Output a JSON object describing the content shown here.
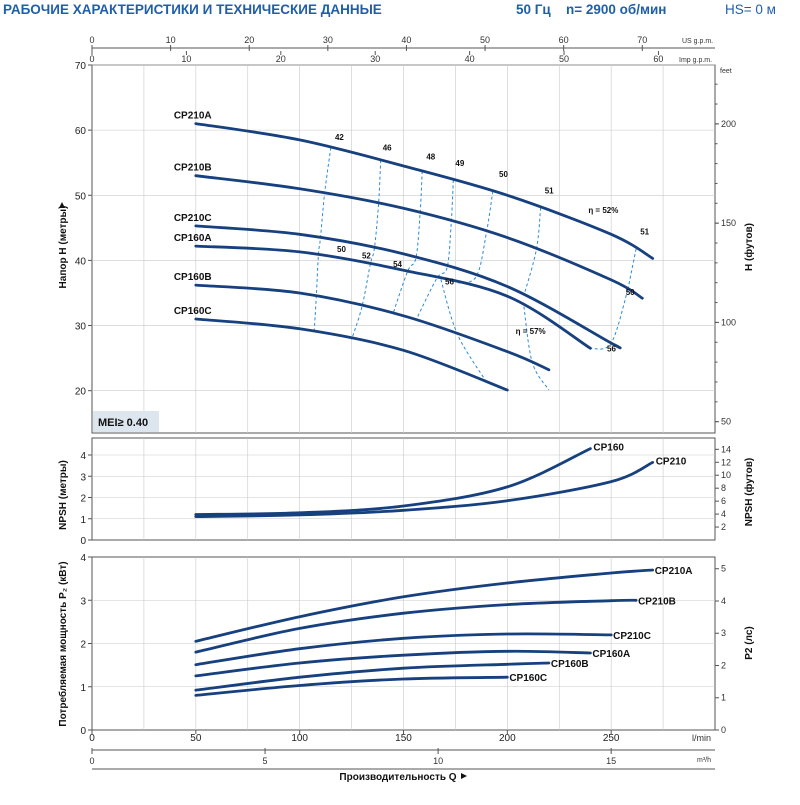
{
  "header": {
    "title": "РАБОЧИЕ ХАРАКТЕРИСТИКИ И ТЕХНИЧЕСКИЕ ДАННЫЕ",
    "frequency": "50 Гц",
    "speed": "n= 2900 об/мин",
    "hs": "HS= 0 м"
  },
  "colors": {
    "curve": "#17407f",
    "efficiency": "#2b8ad8",
    "title": "#1f5fa8",
    "badge": "#dde5ee"
  },
  "chart_data": [
    {
      "type": "line",
      "title": "Head vs flow",
      "ylabel": "Напор Н (метры)",
      "ylabel_right": "Н (футов)",
      "ylim": [
        13.5,
        70
      ],
      "yticks": [
        20,
        30,
        40,
        50,
        60,
        70
      ],
      "yticks_right": [
        50,
        100,
        150,
        200
      ],
      "yunit_right": "feet",
      "badge": "MEI≥ 0.40",
      "series": [
        {
          "name": "CP210A",
          "x": [
            50,
            100,
            150,
            200,
            250,
            270
          ],
          "values": [
            61,
            58.5,
            54.5,
            50,
            44,
            40.3
          ]
        },
        {
          "name": "CP210B",
          "x": [
            50,
            100,
            150,
            200,
            250,
            265
          ],
          "values": [
            53,
            51,
            48,
            43.5,
            37,
            34.2
          ]
        },
        {
          "name": "CP210C",
          "x": [
            50,
            100,
            150,
            200,
            250,
            252
          ],
          "values": [
            45.3,
            44,
            41,
            36,
            27.3,
            27
          ]
        },
        {
          "name": "CP160A",
          "x": [
            50,
            100,
            150,
            200,
            240
          ],
          "values": [
            42.2,
            41.3,
            38.5,
            34.5,
            26.5
          ]
        },
        {
          "name": "CP160B",
          "x": [
            50,
            100,
            150,
            200,
            220
          ],
          "values": [
            36.2,
            35,
            31.5,
            26,
            23.2
          ]
        },
        {
          "name": "CP160C",
          "x": [
            50,
            100,
            150,
            200
          ],
          "values": [
            31,
            29.5,
            26.2,
            20.1
          ]
        }
      ],
      "efficiency_labels": [
        {
          "text": "42",
          "x": 117,
          "y": 58.5
        },
        {
          "text": "46",
          "x": 140,
          "y": 56.9
        },
        {
          "text": "48",
          "x": 161,
          "y": 55.5
        },
        {
          "text": "49",
          "x": 175,
          "y": 54.5
        },
        {
          "text": "50",
          "x": 196,
          "y": 52.8
        },
        {
          "text": "51",
          "x": 218,
          "y": 50.3
        },
        {
          "text": "η = 52%",
          "x": 239,
          "y": 47.3
        },
        {
          "text": "51",
          "x": 264,
          "y": 44
        },
        {
          "text": "50",
          "x": 118,
          "y": 41.3
        },
        {
          "text": "52",
          "x": 130,
          "y": 40.3
        },
        {
          "text": "54",
          "x": 145,
          "y": 39
        },
        {
          "text": "56",
          "x": 170,
          "y": 36.3
        },
        {
          "text": "η = 57%",
          "x": 204,
          "y": 28.7
        },
        {
          "text": "56",
          "x": 248,
          "y": 26
        },
        {
          "text": "50",
          "x": 257,
          "y": 34.7
        }
      ]
    },
    {
      "type": "line",
      "title": "NPSH vs flow",
      "ylabel": "NPSH (метры)",
      "ylabel_right": "NPSH (футов)",
      "ylim": [
        0,
        4.8
      ],
      "yticks": [
        0,
        1,
        2,
        3,
        4
      ],
      "yticks_right": [
        2,
        4,
        6,
        8,
        10,
        12,
        14
      ],
      "series": [
        {
          "name": "CP160",
          "x": [
            50,
            100,
            150,
            200,
            240
          ],
          "values": [
            1.2,
            1.28,
            1.6,
            2.5,
            4.3
          ]
        },
        {
          "name": "CP210",
          "x": [
            50,
            100,
            150,
            200,
            250,
            270
          ],
          "values": [
            1.1,
            1.18,
            1.4,
            1.85,
            2.75,
            3.65
          ]
        }
      ]
    },
    {
      "type": "line",
      "title": "Power vs flow",
      "ylabel": "Потребляемая мощность P₂ (кВт)",
      "ylabel_right": "P2 (лс)",
      "ylim": [
        0,
        4
      ],
      "yticks": [
        0,
        1,
        2,
        3,
        4
      ],
      "yticks_right": [
        0,
        1,
        2,
        3,
        4,
        5
      ],
      "series": [
        {
          "name": "CP210A",
          "x": [
            50,
            100,
            150,
            200,
            250,
            270
          ],
          "values": [
            2.05,
            2.62,
            3.08,
            3.4,
            3.63,
            3.7
          ]
        },
        {
          "name": "CP210B",
          "x": [
            50,
            100,
            150,
            200,
            250,
            262
          ],
          "values": [
            1.8,
            2.35,
            2.7,
            2.9,
            2.99,
            3.0
          ]
        },
        {
          "name": "CP210C",
          "x": [
            50,
            100,
            150,
            200,
            250
          ],
          "values": [
            1.51,
            1.88,
            2.12,
            2.22,
            2.2
          ]
        },
        {
          "name": "CP160A",
          "x": [
            50,
            100,
            150,
            200,
            240
          ],
          "values": [
            1.25,
            1.55,
            1.73,
            1.82,
            1.78
          ]
        },
        {
          "name": "CP160B",
          "x": [
            50,
            100,
            150,
            200,
            220
          ],
          "values": [
            0.92,
            1.22,
            1.43,
            1.52,
            1.55
          ]
        },
        {
          "name": "CP160C",
          "x": [
            50,
            100,
            150,
            200
          ],
          "values": [
            0.8,
            1.03,
            1.18,
            1.22
          ]
        }
      ]
    }
  ],
  "axes": {
    "x_lmin": {
      "label": "l/min",
      "ticks": [
        0,
        50,
        100,
        150,
        200,
        250
      ]
    },
    "x_m3h": {
      "label": "m³/h",
      "ticks": [
        0,
        5,
        10,
        15
      ]
    },
    "x_usgpm": {
      "label": "US g.p.m.",
      "ticks": [
        0,
        10,
        20,
        30,
        40,
        50,
        60,
        70
      ]
    },
    "x_impgpm": {
      "label": "Imp g.p.m.",
      "ticks": [
        0,
        10,
        20,
        30,
        40,
        50,
        60
      ]
    },
    "x_title": "Производительность Q"
  }
}
